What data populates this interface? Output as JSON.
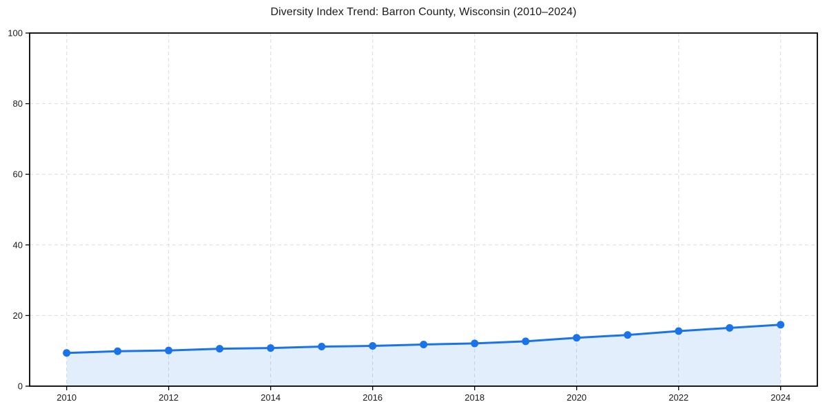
{
  "figure": {
    "background_color": "#ffffff"
  },
  "chart_data": {
    "type": "line",
    "title": "Diversity Index Trend: Barron County, Wisconsin (2010–2024)",
    "x": [
      2010,
      2011,
      2012,
      2013,
      2014,
      2015,
      2016,
      2017,
      2018,
      2019,
      2020,
      2021,
      2022,
      2023,
      2024
    ],
    "values": [
      9.4,
      9.9,
      10.1,
      10.6,
      10.8,
      11.2,
      11.4,
      11.8,
      12.1,
      12.7,
      13.7,
      14.5,
      15.6,
      16.5,
      17.4
    ],
    "xlabel": "",
    "ylabel": "",
    "xlim": [
      2009.3,
      2024.7
    ],
    "ylim": [
      0,
      100
    ],
    "yticks": [
      0,
      20,
      40,
      60,
      80,
      100
    ],
    "xticks": [
      2010,
      2012,
      2014,
      2016,
      2018,
      2020,
      2022,
      2024
    ],
    "grid": true,
    "grid_style": "dashed",
    "legend": false,
    "marker": "circle",
    "area_fill": true,
    "colors": {
      "line": "#1a73e8",
      "marker": "#1a73e8",
      "area": "rgba(26,115,232,0.12)",
      "grid": "#dcdcdc",
      "axis": "#000000",
      "tick_text": "#1a1a1a",
      "title_text": "#1a1a1a"
    }
  }
}
